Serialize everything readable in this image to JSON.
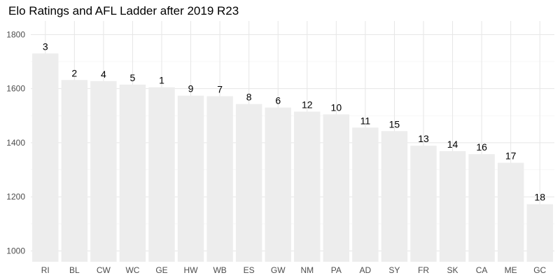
{
  "chart_data": {
    "type": "bar",
    "title": "Elo Ratings and AFL Ladder after 2019 R23",
    "xlabel": "",
    "ylabel": "",
    "ylim": [
      960,
      1850
    ],
    "yticks": [
      1000,
      1200,
      1400,
      1600,
      1800
    ],
    "grid": true,
    "categories": [
      "RI",
      "BL",
      "CW",
      "WC",
      "GE",
      "HW",
      "WB",
      "ES",
      "GW",
      "NM",
      "PA",
      "AD",
      "SY",
      "FR",
      "SK",
      "CA",
      "ME",
      "GC"
    ],
    "values": [
      1730,
      1632,
      1628,
      1615,
      1605,
      1574,
      1572,
      1543,
      1530,
      1515,
      1505,
      1456,
      1443,
      1389,
      1369,
      1358,
      1326,
      1173
    ],
    "labels": [
      "3",
      "2",
      "4",
      "5",
      "1",
      "9",
      "7",
      "8",
      "6",
      "12",
      "10",
      "11",
      "15",
      "13",
      "14",
      "16",
      "17",
      "18"
    ],
    "colors": {
      "bar": "#ededed",
      "grid_major": "#e6e6e6",
      "grid_minor": "#f2f2f2"
    }
  }
}
